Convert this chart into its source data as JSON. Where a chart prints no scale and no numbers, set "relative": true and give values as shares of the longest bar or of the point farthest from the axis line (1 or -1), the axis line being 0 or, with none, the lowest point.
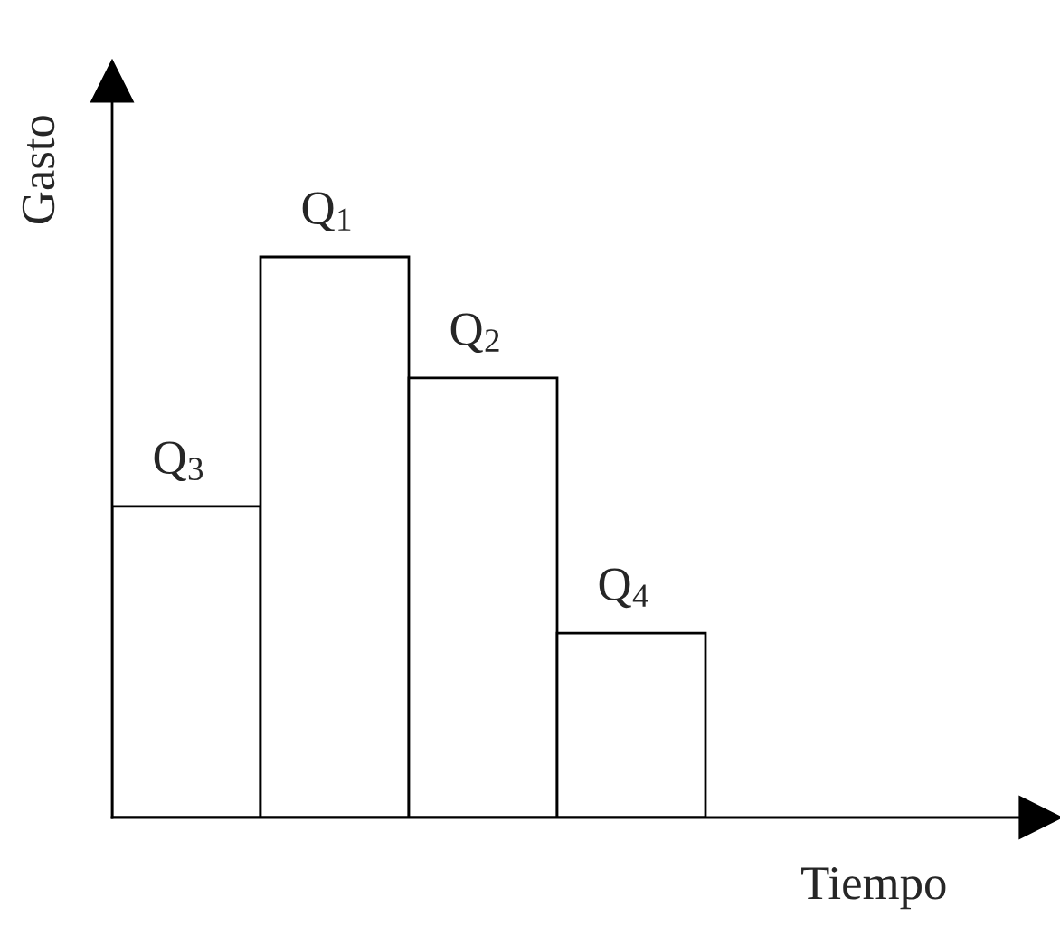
{
  "chart_data": {
    "type": "bar",
    "relative": true,
    "xlabel": "Tiempo",
    "ylabel": "Gasto",
    "categories": [
      "Q$_{3}$",
      "Q$_{1}$",
      "Q$_{2}$",
      "Q$_{4}$"
    ],
    "values": [
      0.555,
      1,
      0.784,
      0.329
    ],
    "color": "#ffffff"
  }
}
